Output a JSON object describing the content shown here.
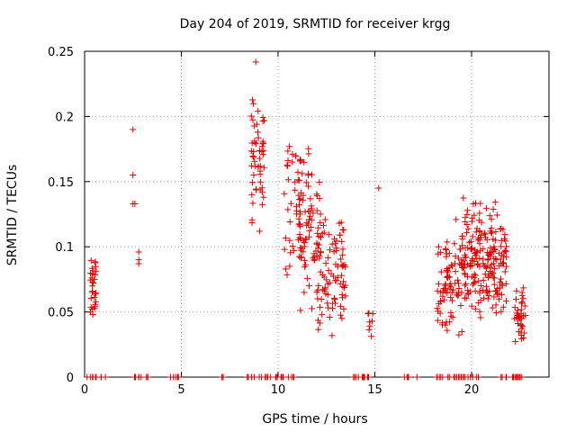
{
  "chart_data": {
    "type": "scatter",
    "title": "Day 204 of 2019, SRMTID for receiver krgg",
    "xlabel": "GPS time / hours",
    "ylabel": "SRMTID / TECUs",
    "xlim": [
      0,
      24
    ],
    "ylim": [
      0,
      0.25
    ],
    "x_ticks": [
      0,
      5,
      10,
      15,
      20
    ],
    "y_ticks": [
      0,
      0.05,
      0.1,
      0.15,
      0.2,
      0.25
    ],
    "x_tick_labels": [
      "0",
      "5",
      "10",
      "15",
      "20"
    ],
    "y_tick_labels": [
      "0",
      "0.05",
      "0.1",
      "0.15",
      "0.2",
      "0.25"
    ],
    "grid": true,
    "marker": "+",
    "series": [
      {
        "name": "SRMTID",
        "color": "#e00000",
        "clusters": [
          {
            "x_range": [
              0.3,
              0.6
            ],
            "y_range": [
              0.03,
              0.105
            ],
            "count": 30,
            "seed": 1
          },
          {
            "x_range": [
              8.6,
              9.3
            ],
            "y_range": [
              0.09,
              0.248
            ],
            "count": 55,
            "seed": 2
          },
          {
            "x_range": [
              10.3,
              11.2
            ],
            "y_range": [
              0.06,
              0.215
            ],
            "count": 35,
            "seed": 3
          },
          {
            "x_range": [
              11.0,
              12.2
            ],
            "y_range": [
              0.03,
              0.2
            ],
            "count": 80,
            "seed": 4
          },
          {
            "x_range": [
              12.0,
              13.5
            ],
            "y_range": [
              0.015,
              0.14
            ],
            "count": 90,
            "seed": 5
          },
          {
            "x_range": [
              14.6,
              14.9
            ],
            "y_range": [
              0.018,
              0.065
            ],
            "count": 8,
            "seed": 6
          },
          {
            "x_range": [
              18.2,
              19.5
            ],
            "y_range": [
              0.02,
              0.13
            ],
            "count": 80,
            "seed": 7
          },
          {
            "x_range": [
              19.5,
              20.7
            ],
            "y_range": [
              0.025,
              0.15
            ],
            "count": 110,
            "seed": 8
          },
          {
            "x_range": [
              20.7,
              21.8
            ],
            "y_range": [
              0.03,
              0.14
            ],
            "count": 100,
            "seed": 9
          },
          {
            "x_range": [
              22.2,
              22.8
            ],
            "y_range": [
              0.02,
              0.08
            ],
            "count": 40,
            "seed": 10
          }
        ],
        "points": [
          [
            2.5,
            0.19
          ],
          [
            2.5,
            0.155
          ],
          [
            2.5,
            0.133
          ],
          [
            2.6,
            0.133
          ],
          [
            2.8,
            0.096
          ],
          [
            2.8,
            0.09
          ],
          [
            2.8,
            0.087
          ],
          [
            15.2,
            0.145
          ],
          [
            10.6,
            0.085
          ],
          [
            10.4,
            0.083
          ]
        ],
        "zero_ranges": [
          [
            0.1,
            1.1
          ],
          [
            2.4,
            3.3
          ],
          [
            4.3,
            4.9
          ],
          [
            6.9,
            7.2
          ],
          [
            8.3,
            11.0
          ],
          [
            13.6,
            14.8
          ],
          [
            16.5,
            17.2
          ],
          [
            18.0,
            20.5
          ],
          [
            21.5,
            22.9
          ]
        ],
        "zero_count": 110
      }
    ]
  }
}
